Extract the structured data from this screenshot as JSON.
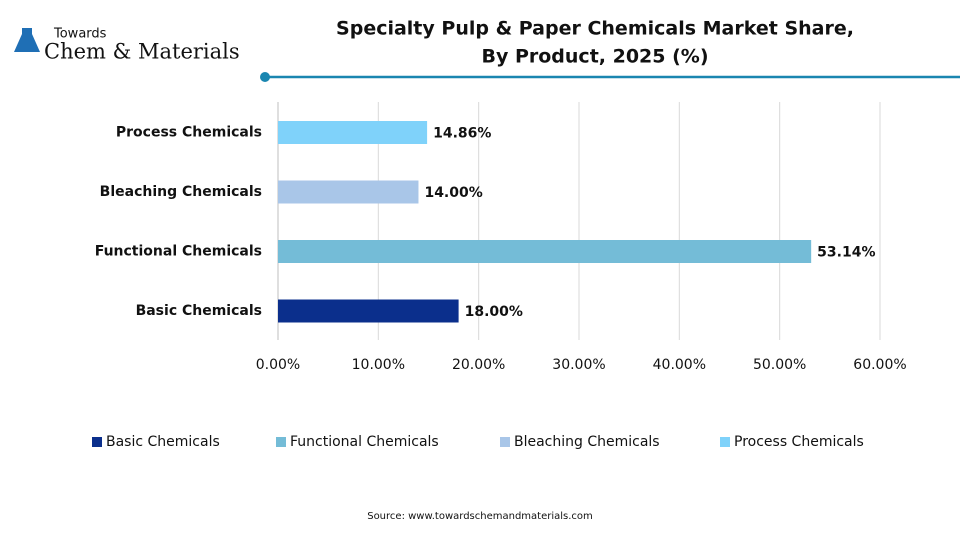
{
  "logo": {
    "top": "Towards",
    "name": "Chem & Materials"
  },
  "chart_data": {
    "type": "hbar",
    "title": [
      "Specialty Pulp & Paper Chemicals Market Share,",
      "By Product, 2025 (%)"
    ],
    "categories": [
      "Basic Chemicals",
      "Functional Chemicals",
      "Bleaching Chemicals",
      "Process Chemicals"
    ],
    "values": [
      18.0,
      53.14,
      14.0,
      14.86
    ],
    "value_labels": [
      "18.00%",
      "53.14%",
      "14.00%",
      "14.86%"
    ],
    "colors": [
      "#0b2f8c",
      "#74bcd7",
      "#a9c6e8",
      "#7fd2fa"
    ],
    "xlim": [
      0,
      60
    ],
    "xticks": [
      {
        "value": 0,
        "label": "0.00%"
      },
      {
        "value": 10,
        "label": "10.00%"
      },
      {
        "value": 20,
        "label": "20.00%"
      },
      {
        "value": 30,
        "label": "30.00%"
      },
      {
        "value": 40,
        "label": "40.00%"
      },
      {
        "value": 50,
        "label": "50.00%"
      },
      {
        "value": 60,
        "label": "60.00%"
      }
    ],
    "grid": true,
    "legend": "bottom",
    "source": "Source: www.towardschemandmaterials.com"
  }
}
